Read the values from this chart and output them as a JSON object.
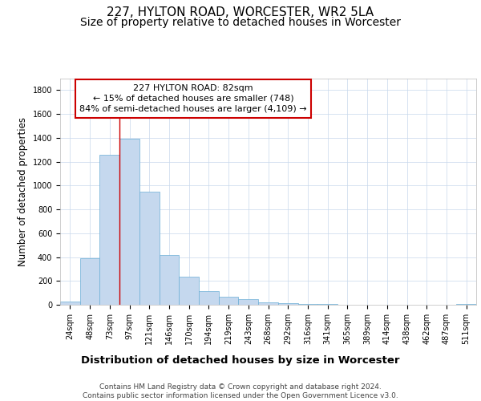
{
  "title_line1": "227, HYLTON ROAD, WORCESTER, WR2 5LA",
  "title_line2": "Size of property relative to detached houses in Worcester",
  "xlabel": "Distribution of detached houses by size in Worcester",
  "ylabel": "Number of detached properties",
  "categories": [
    "24sqm",
    "48sqm",
    "73sqm",
    "97sqm",
    "121sqm",
    "146sqm",
    "170sqm",
    "194sqm",
    "219sqm",
    "243sqm",
    "268sqm",
    "292sqm",
    "316sqm",
    "341sqm",
    "365sqm",
    "389sqm",
    "414sqm",
    "438sqm",
    "462sqm",
    "487sqm",
    "511sqm"
  ],
  "values": [
    25,
    390,
    1260,
    1390,
    950,
    415,
    235,
    115,
    70,
    50,
    20,
    12,
    8,
    5,
    3,
    3,
    3,
    2,
    2,
    2,
    10
  ],
  "bar_color": "#c5d8ee",
  "bar_edge_color": "#6baed6",
  "vline_color": "#cc0000",
  "vline_pos": 2.5,
  "annotation_line1": "227 HYLTON ROAD: 82sqm",
  "annotation_line2": "← 15% of detached houses are smaller (748)",
  "annotation_line3": "84% of semi-detached houses are larger (4,109) →",
  "annotation_box_facecolor": "#ffffff",
  "annotation_box_edgecolor": "#cc0000",
  "ylim": [
    0,
    1900
  ],
  "yticks": [
    0,
    200,
    400,
    600,
    800,
    1000,
    1200,
    1400,
    1600,
    1800
  ],
  "footer_text": "Contains HM Land Registry data © Crown copyright and database right 2024.\nContains public sector information licensed under the Open Government Licence v3.0.",
  "background_color": "#ffffff",
  "grid_color": "#c8d8eb",
  "title1_fontsize": 11,
  "title2_fontsize": 10,
  "ylabel_fontsize": 8.5,
  "xlabel_fontsize": 9.5,
  "tick_fontsize": 7,
  "annotation_fontsize": 8,
  "footer_fontsize": 6.5
}
